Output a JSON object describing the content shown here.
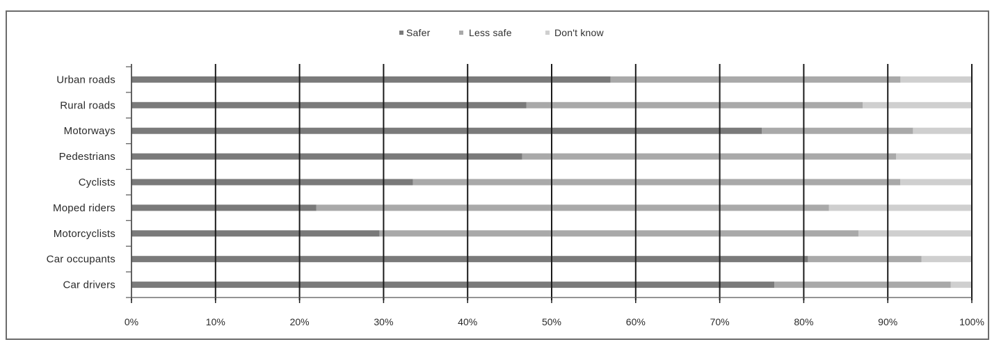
{
  "chart_data": {
    "type": "bar",
    "orientation": "horizontal",
    "stacked": true,
    "percent": true,
    "categories": [
      "Urban roads",
      "Rural roads",
      "Motorways",
      "Pedestrians",
      "Cyclists",
      "Moped riders",
      "Motorcyclists",
      "Car occupants",
      "Car drivers"
    ],
    "series": [
      {
        "name": "Safer",
        "color": "#7a7a7a",
        "values": [
          57,
          47,
          75,
          46.5,
          33.5,
          22,
          29.5,
          80.5,
          76.5
        ]
      },
      {
        "name": "Less safe",
        "color": "#a9a9a9",
        "values": [
          34.5,
          40,
          18,
          44.5,
          58,
          61,
          57,
          13.5,
          21
        ]
      },
      {
        "name": "Don't know",
        "color": "#cfcfcf",
        "values": [
          8.5,
          13,
          7,
          9,
          8.5,
          17,
          13.5,
          6,
          2.5
        ]
      }
    ],
    "x_ticks": [
      "0%",
      "10%",
      "20%",
      "30%",
      "40%",
      "50%",
      "60%",
      "70%",
      "80%",
      "90%",
      "100%"
    ],
    "xlim": [
      0,
      100
    ],
    "grid": true,
    "legend_position": "top-center",
    "title": "",
    "xlabel": "",
    "ylabel": ""
  }
}
